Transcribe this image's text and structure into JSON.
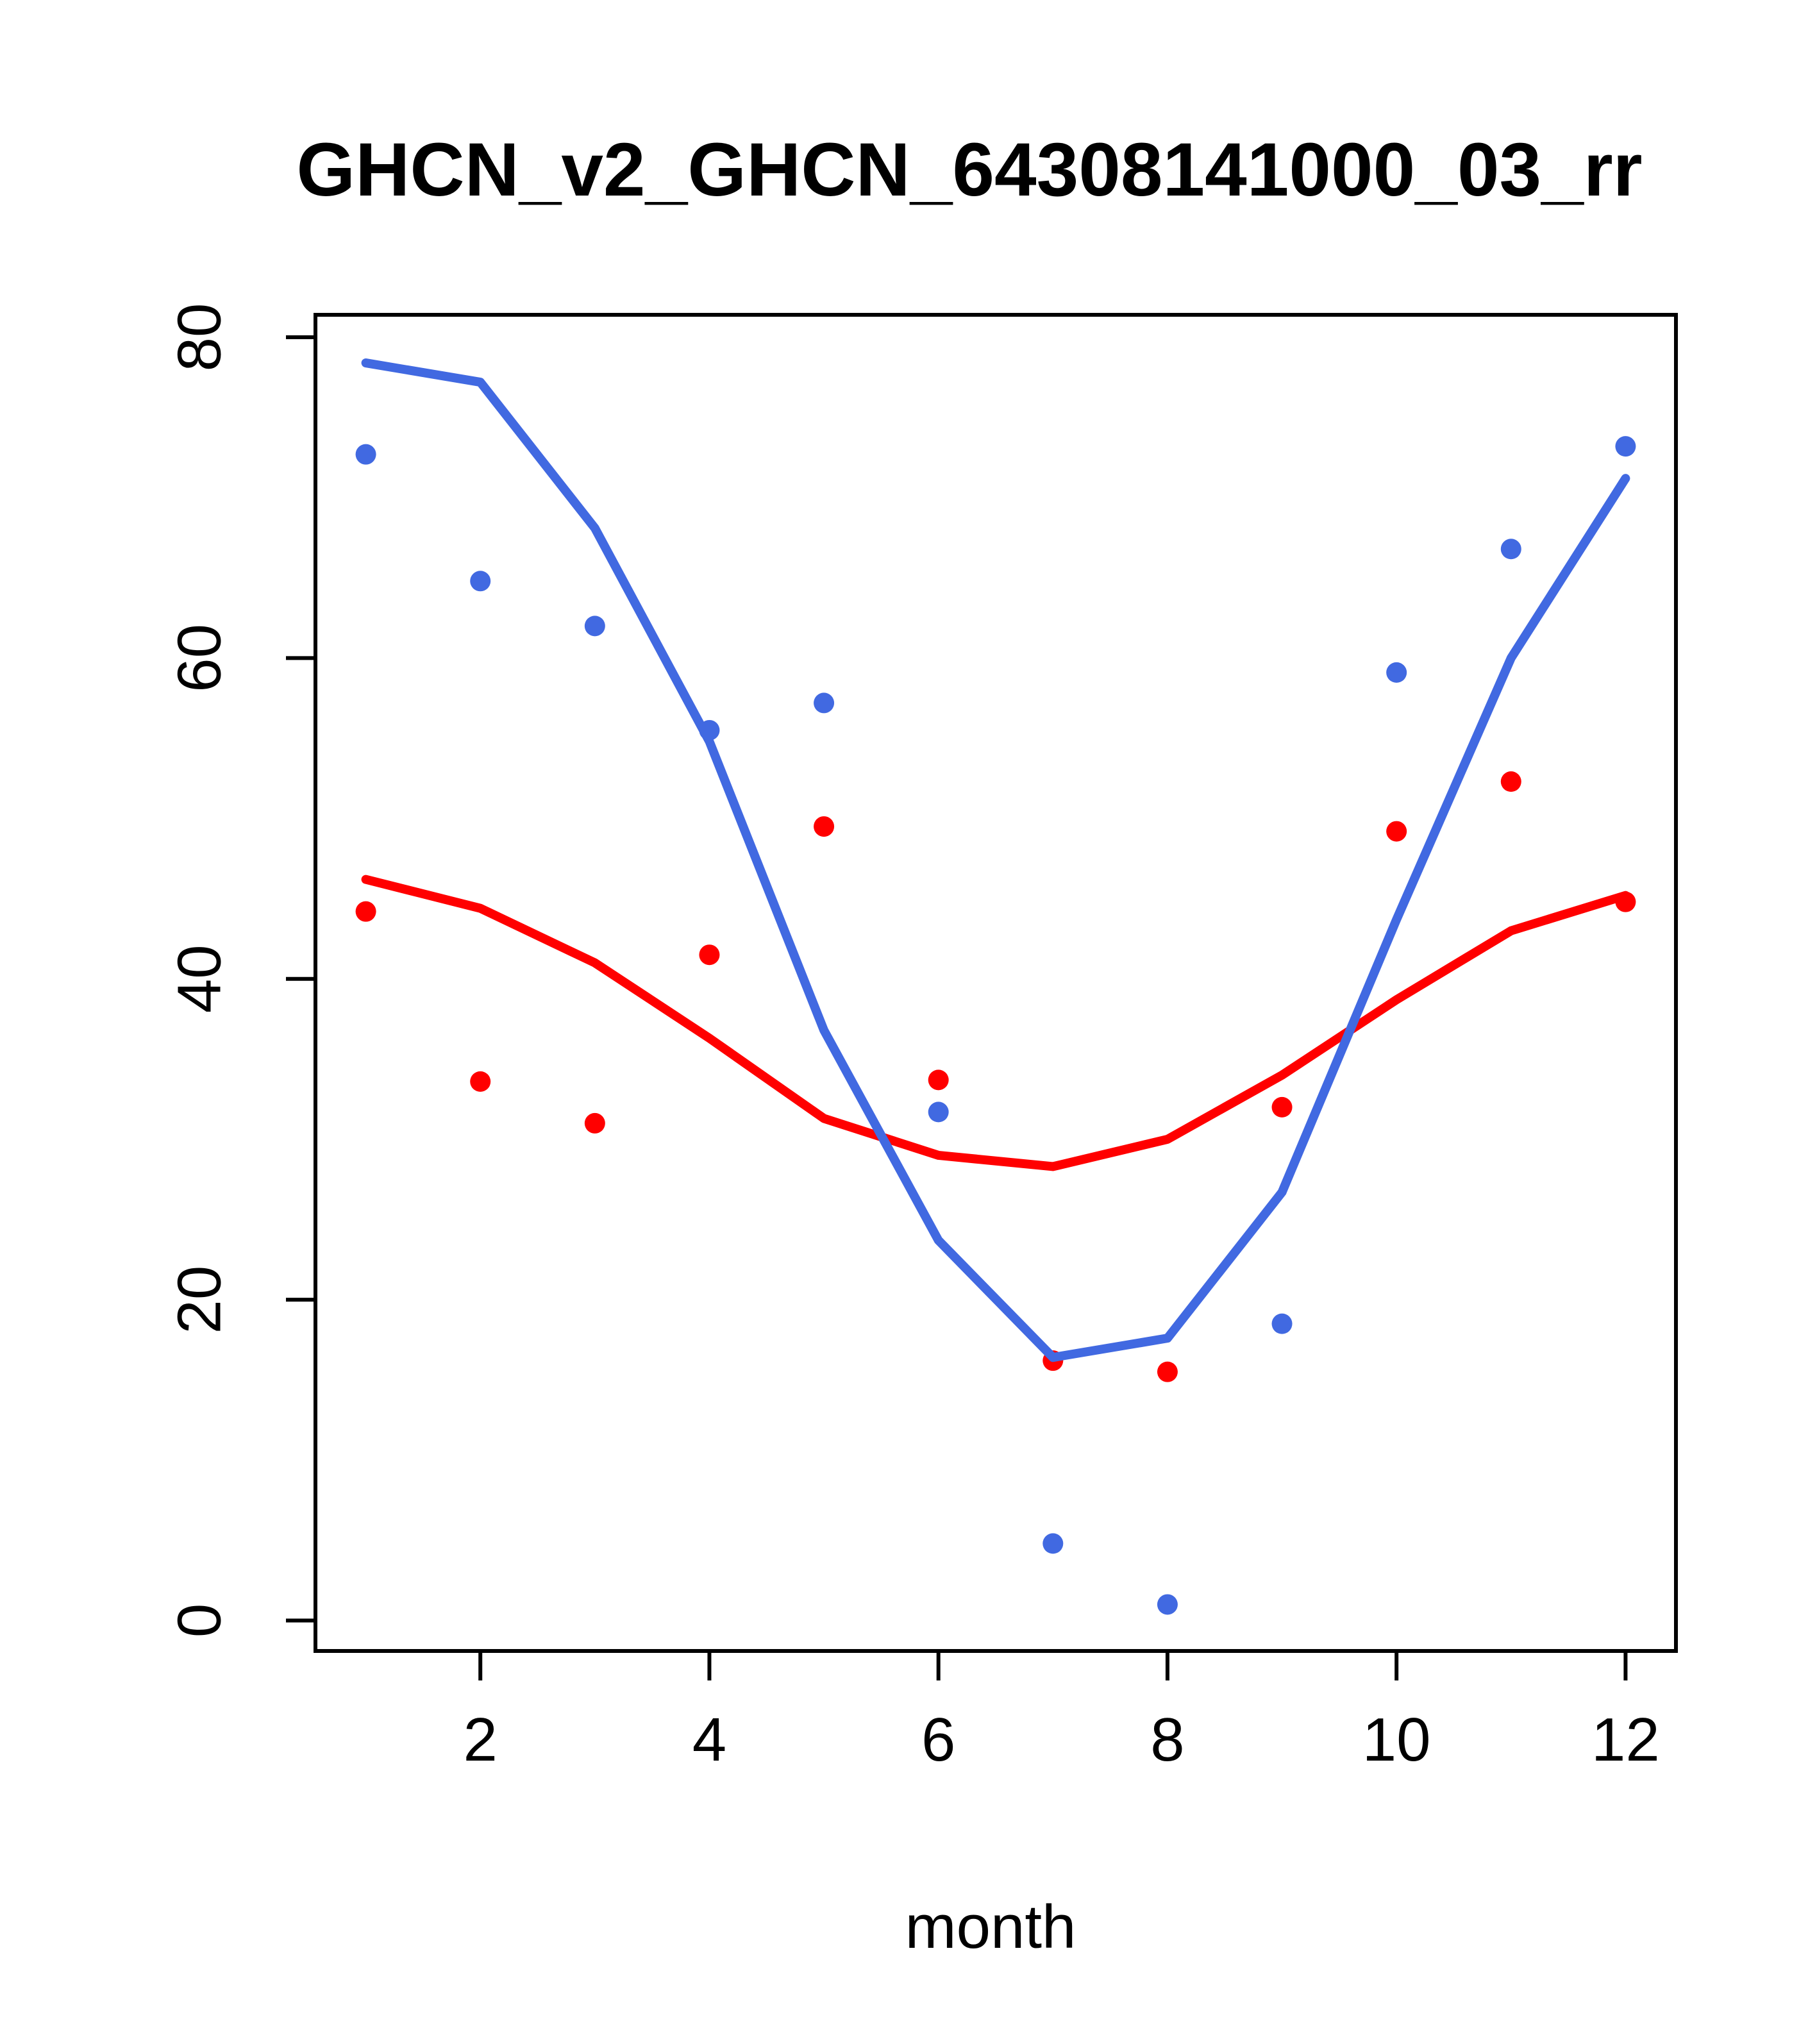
{
  "title": "GHCN_v2_GHCN_64308141000_03_rr",
  "chart_data": {
    "type": "scatter",
    "title": "GHCN_v2_GHCN_64308141000_03_rr",
    "xlabel": "month",
    "ylabel": "",
    "grid": false,
    "legend_position": "none",
    "x": [
      1,
      2,
      3,
      4,
      5,
      6,
      7,
      8,
      9,
      10,
      11,
      12
    ],
    "xlim": [
      0.56,
      12.44
    ],
    "ylim": [
      -1.9,
      81.4
    ],
    "x_ticks": [
      2,
      4,
      6,
      8,
      10,
      12
    ],
    "x_tick_labels": [
      "2",
      "4",
      "6",
      "8",
      "10",
      "12"
    ],
    "y_ticks": [
      0,
      20,
      40,
      60,
      80
    ],
    "y_tick_labels": [
      "0",
      "20",
      "40",
      "60",
      "80"
    ],
    "series": [
      {
        "name": "red-points",
        "type": "scatter",
        "color": "#FF0000",
        "values": [
          44.2,
          33.6,
          31.0,
          41.5,
          49.5,
          33.7,
          16.2,
          15.5,
          32.0,
          49.2,
          52.3,
          44.8
        ]
      },
      {
        "name": "red-line",
        "type": "line",
        "color": "#FF0000",
        "values": [
          46.2,
          44.4,
          41.0,
          36.3,
          31.3,
          29.0,
          28.3,
          30.0,
          34.0,
          38.7,
          43.0,
          45.2
        ]
      },
      {
        "name": "blue-line",
        "type": "line",
        "color": "#4169E1",
        "values": [
          78.4,
          77.2,
          68.1,
          54.8,
          36.8,
          23.7,
          16.4,
          17.6,
          26.7,
          43.7,
          60.0,
          71.2
        ]
      },
      {
        "name": "blue-points",
        "type": "scatter",
        "color": "#4169E1",
        "values": [
          72.7,
          64.8,
          62.0,
          55.5,
          57.2,
          31.7,
          4.8,
          1.0,
          18.5,
          59.1,
          66.8,
          73.2
        ]
      }
    ]
  },
  "style": {
    "point_radius": 16,
    "line_width": 14,
    "axis_width": 6,
    "tick_length": 46,
    "background": "#FFFFFF",
    "axis_color": "#000000"
  }
}
